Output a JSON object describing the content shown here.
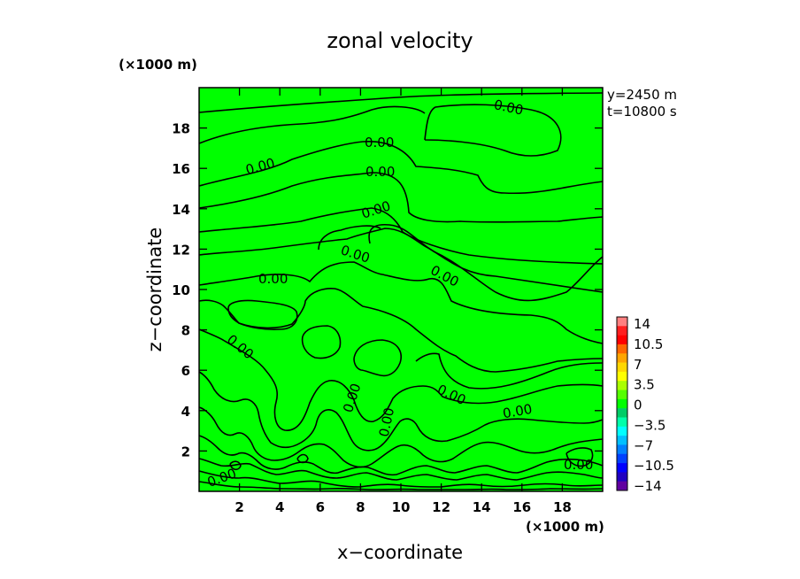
{
  "chart_data": {
    "type": "contour",
    "title": "zonal velocity",
    "xlabel": "x−coordinate",
    "ylabel": "z−coordinate",
    "x_unit": "(×1000 m)",
    "y_unit": "(×1000 m)",
    "xlim": [
      0,
      20
    ],
    "ylim": [
      0,
      20
    ],
    "xticks": [
      2,
      4,
      6,
      8,
      10,
      12,
      14,
      16,
      18
    ],
    "yticks": [
      2,
      4,
      6,
      8,
      10,
      12,
      14,
      16,
      18
    ],
    "info": [
      "y=2450 m",
      "t=10800 s"
    ],
    "contour_level_label": "0.00",
    "field_color": "#00ff00",
    "colorbar": {
      "labels": [
        "14",
        "10.5",
        "7",
        "3.5",
        "0",
        "−3.5",
        "−7",
        "−10.5",
        "−14"
      ],
      "colors": [
        "#ff8080",
        "#ff2020",
        "#ff0000",
        "#ff6600",
        "#ffa500",
        "#ffd700",
        "#ffff00",
        "#aaff00",
        "#55ff00",
        "#00ff00",
        "#00cc66",
        "#00ffaa",
        "#00ffff",
        "#00c0ff",
        "#0080ff",
        "#0040ff",
        "#0000ff",
        "#2000c0",
        "#6000a0"
      ]
    }
  }
}
